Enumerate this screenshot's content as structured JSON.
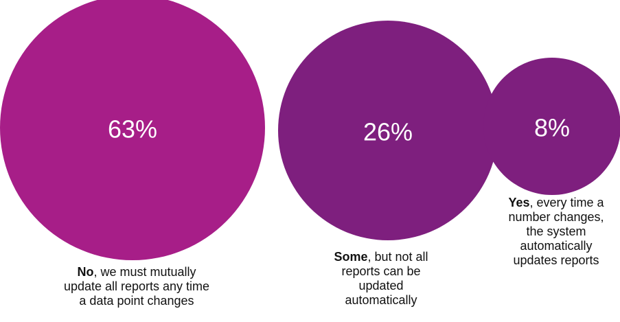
{
  "chart_data": {
    "type": "bubble",
    "bubbles": [
      {
        "value": 63,
        "label": "63%",
        "color": "#A71E88",
        "caption_lead": "No",
        "caption_lines": [
          ", we must mutually",
          "update all reports any time",
          "a data point changes"
        ]
      },
      {
        "value": 26,
        "label": "26%",
        "color": "#7E1F7E",
        "caption_lead": "Some",
        "caption_lines": [
          ", but not all",
          "reports can be",
          "updated",
          "automatically"
        ]
      },
      {
        "value": 8,
        "label": "8%",
        "color": "#7E1F7E",
        "caption_lead": "Yes",
        "caption_lines": [
          ", every time a",
          "number changes,",
          "the system",
          "automatically",
          "updates reports"
        ]
      }
    ]
  }
}
